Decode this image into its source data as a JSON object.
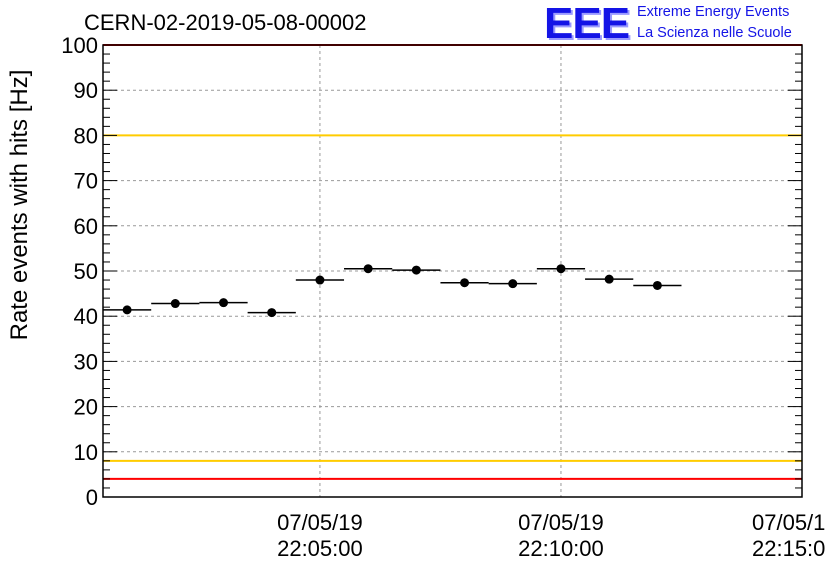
{
  "header": {
    "run_id": "CERN-02-2019-05-08-00002",
    "logo_letters": "EEE",
    "logo_line1": "Extreme Energy Events",
    "logo_line2": "La Scienza nelle Scuole"
  },
  "chart_data": {
    "type": "scatter",
    "title": "CERN-02-2019-05-08-00002",
    "ylabel": "Rate events with hits [Hz]",
    "xlabel": "",
    "ylim": [
      0,
      100
    ],
    "yticks": [
      "0",
      "10",
      "20",
      "30",
      "40",
      "50",
      "60",
      "70",
      "80",
      "90",
      "100"
    ],
    "xticks": [
      {
        "date": "07/05/19",
        "time": "22:05:00"
      },
      {
        "date": "07/05/19",
        "time": "22:10:00"
      },
      {
        "date": "07/05/1",
        "time": "22:15:0"
      }
    ],
    "xlim": [
      "22:00:30",
      "22:15:00"
    ],
    "grid": true,
    "points": [
      {
        "x_start": "22:00:30",
        "x_end": "22:01:30",
        "y": 41.4
      },
      {
        "x_start": "22:01:30",
        "x_end": "22:02:30",
        "y": 42.8
      },
      {
        "x_start": "22:02:30",
        "x_end": "22:03:30",
        "y": 43.0
      },
      {
        "x_start": "22:03:30",
        "x_end": "22:04:30",
        "y": 40.8
      },
      {
        "x_start": "22:04:30",
        "x_end": "22:05:30",
        "y": 48.0
      },
      {
        "x_start": "22:05:30",
        "x_end": "22:06:30",
        "y": 50.5
      },
      {
        "x_start": "22:06:30",
        "x_end": "22:07:30",
        "y": 50.2
      },
      {
        "x_start": "22:07:30",
        "x_end": "22:08:30",
        "y": 47.4
      },
      {
        "x_start": "22:08:30",
        "x_end": "22:09:30",
        "y": 47.2
      },
      {
        "x_start": "22:09:30",
        "x_end": "22:10:30",
        "y": 50.5
      },
      {
        "x_start": "22:10:30",
        "x_end": "22:11:30",
        "y": 48.2
      },
      {
        "x_start": "22:11:30",
        "x_end": "22:12:30",
        "y": 46.8
      }
    ],
    "reference_lines": [
      {
        "y": 100,
        "color": "#ff0000"
      },
      {
        "y": 80,
        "color": "#ffcc00"
      },
      {
        "y": 8,
        "color": "#ffcc00"
      },
      {
        "y": 4,
        "color": "#ff0000"
      }
    ],
    "marker_color": "#000000"
  }
}
